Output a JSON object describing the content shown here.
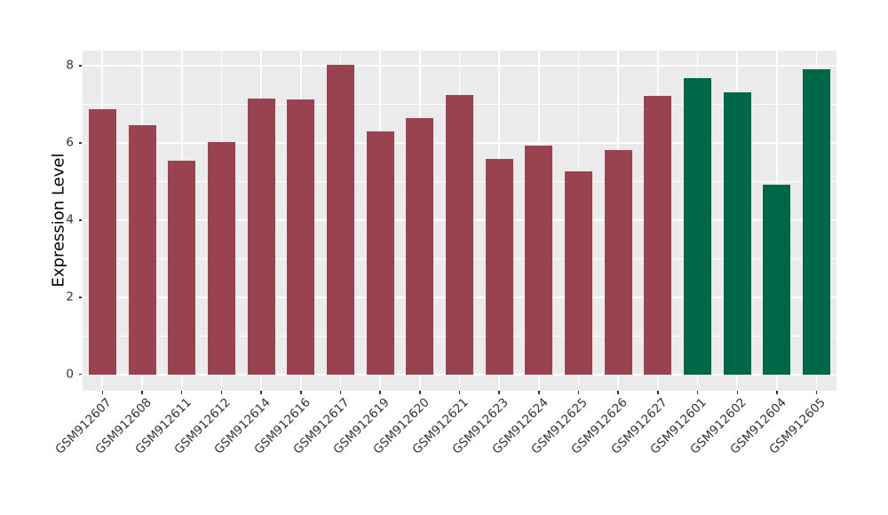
{
  "chart_data": {
    "type": "bar",
    "title": "",
    "xlabel": "",
    "ylabel": "Expression Level",
    "ylim": [
      0,
      8.4
    ],
    "yticks": [
      0,
      2,
      4,
      6,
      8
    ],
    "yticks_minor": [
      1,
      3,
      5,
      7
    ],
    "grid": true,
    "legend": "none",
    "panel_bg": "#EBEBEB",
    "grid_color": "#FFFFFF",
    "tick_color": "#333333",
    "bar_colors": {
      "maroon": "#9A4350",
      "green": "#006848"
    },
    "categories": [
      "GSM912607",
      "GSM912608",
      "GSM912611",
      "GSM912612",
      "GSM912614",
      "GSM912616",
      "GSM912617",
      "GSM912619",
      "GSM912620",
      "GSM912621",
      "GSM912623",
      "GSM912624",
      "GSM912625",
      "GSM912626",
      "GSM912627",
      "GSM912601",
      "GSM912602",
      "GSM912604",
      "GSM912605"
    ],
    "bars": [
      {
        "label": "GSM912607",
        "value": 6.87,
        "group": "maroon"
      },
      {
        "label": "GSM912608",
        "value": 6.45,
        "group": "maroon"
      },
      {
        "label": "GSM912611",
        "value": 5.53,
        "group": "maroon"
      },
      {
        "label": "GSM912612",
        "value": 6.02,
        "group": "maroon"
      },
      {
        "label": "GSM912614",
        "value": 7.15,
        "group": "maroon"
      },
      {
        "label": "GSM912616",
        "value": 7.13,
        "group": "maroon"
      },
      {
        "label": "GSM912617",
        "value": 8.02,
        "group": "maroon"
      },
      {
        "label": "GSM912619",
        "value": 6.31,
        "group": "maroon"
      },
      {
        "label": "GSM912620",
        "value": 6.64,
        "group": "maroon"
      },
      {
        "label": "GSM912621",
        "value": 7.25,
        "group": "maroon"
      },
      {
        "label": "GSM912623",
        "value": 5.58,
        "group": "maroon"
      },
      {
        "label": "GSM912624",
        "value": 5.92,
        "group": "maroon"
      },
      {
        "label": "GSM912625",
        "value": 5.27,
        "group": "maroon"
      },
      {
        "label": "GSM912626",
        "value": 5.81,
        "group": "maroon"
      },
      {
        "label": "GSM912627",
        "value": 7.22,
        "group": "maroon"
      },
      {
        "label": "GSM912601",
        "value": 7.69,
        "group": "green"
      },
      {
        "label": "GSM912602",
        "value": 7.31,
        "group": "green"
      },
      {
        "label": "GSM912604",
        "value": 4.91,
        "group": "green"
      },
      {
        "label": "GSM912605",
        "value": 7.9,
        "group": "green"
      }
    ]
  }
}
